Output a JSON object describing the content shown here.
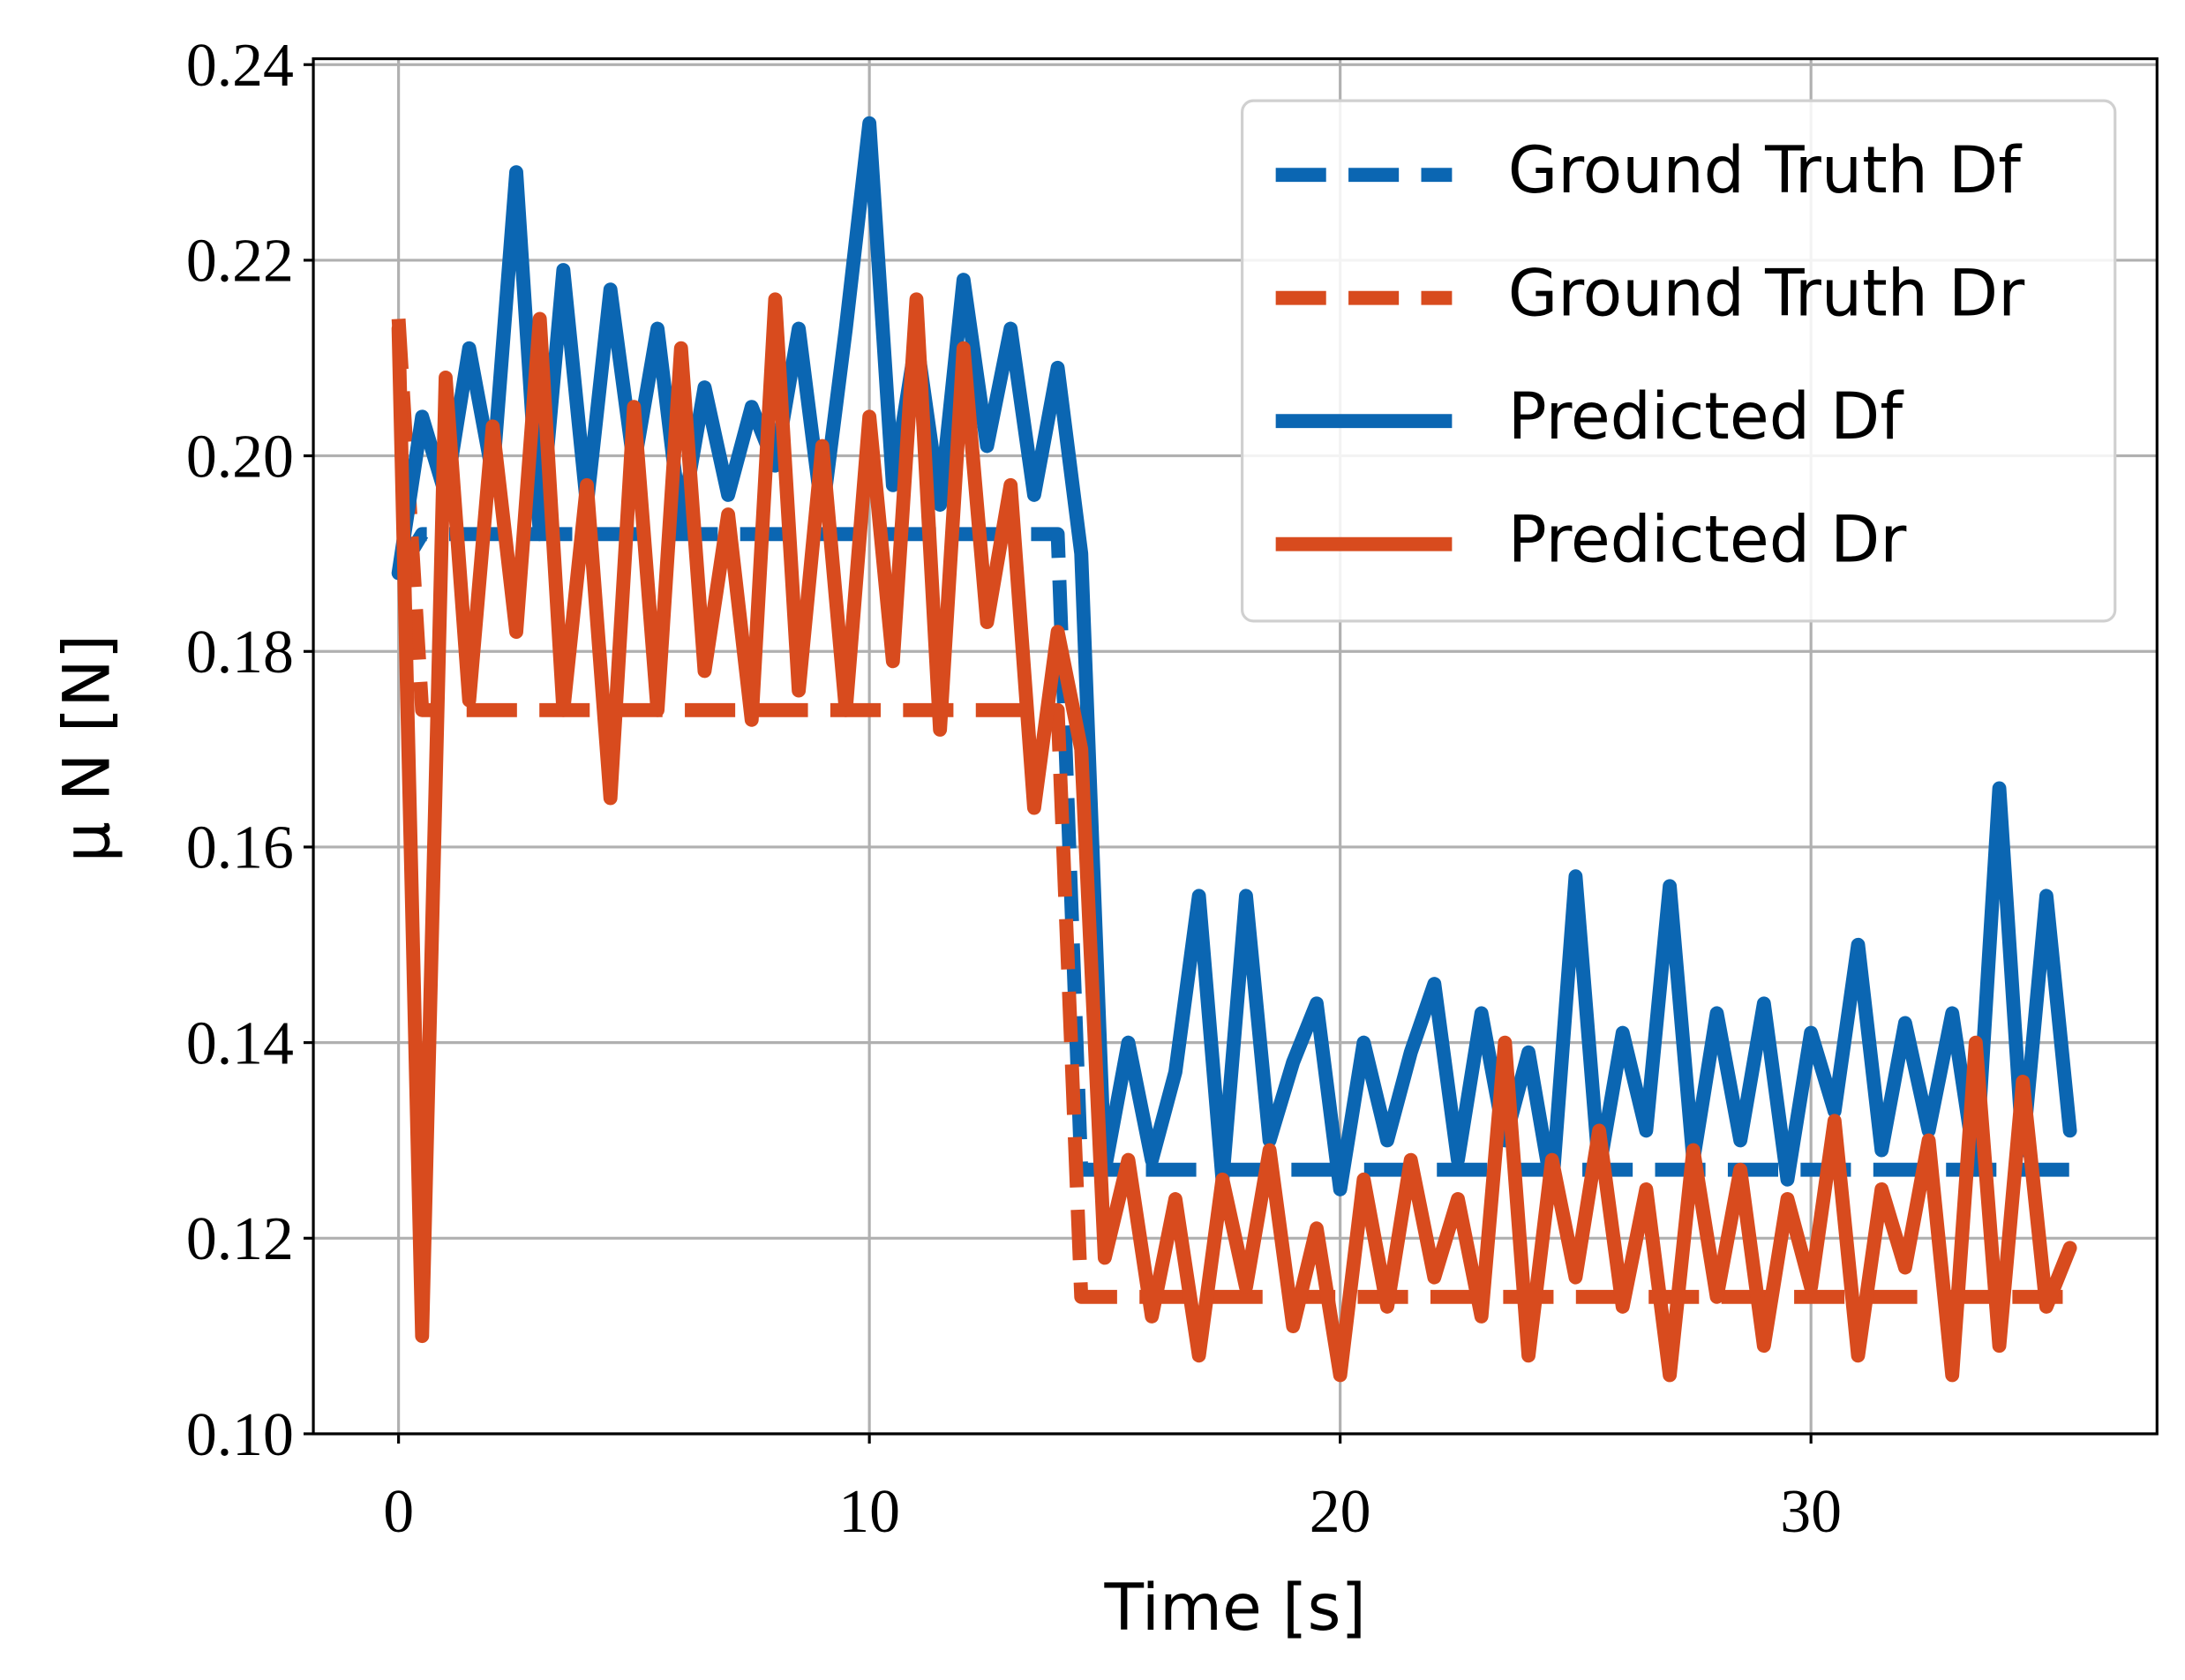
{
  "chart_data": {
    "type": "line",
    "xlabel": "Time [s]",
    "ylabel": "μ N [N]",
    "xlim": [
      -1.81,
      37.35
    ],
    "ylim": [
      0.1,
      0.2406
    ],
    "xticks": [
      0,
      10,
      20,
      30
    ],
    "yticks": [
      {
        "value": 0.1,
        "label": "0.10"
      },
      0.12,
      0.14,
      0.16,
      0.18,
      {
        "value": 0.2,
        "label": "0.20"
      },
      0.22,
      0.24
    ],
    "grid": true,
    "legend": "upper right",
    "x": [
      0,
      0.5,
      1,
      1.5,
      2,
      2.5,
      3,
      3.5,
      4,
      4.5,
      5,
      5.5,
      6,
      6.5,
      7,
      7.5,
      8,
      8.5,
      9,
      9.5,
      10,
      10.5,
      11,
      11.5,
      12,
      12.5,
      13,
      13.5,
      14,
      14.5,
      15,
      15.5,
      16,
      16.5,
      17,
      17.5,
      18,
      18.5,
      19,
      19.5,
      20,
      20.5,
      21,
      21.5,
      22,
      22.5,
      23,
      23.5,
      24,
      24.5,
      25,
      25.5,
      26,
      26.5,
      27,
      27.5,
      28,
      28.5,
      29,
      29.5,
      30,
      30.5,
      31,
      31.5,
      32,
      32.5,
      33,
      33.5,
      34,
      34.5,
      35,
      35.5
    ],
    "series": [
      {
        "name": "Ground Truth Df",
        "color": "#0b66b2",
        "dashed": true,
        "values": [
          0.188,
          0.192,
          0.192,
          0.192,
          0.192,
          0.192,
          0.192,
          0.192,
          0.192,
          0.192,
          0.192,
          0.192,
          0.192,
          0.192,
          0.192,
          0.192,
          0.192,
          0.192,
          0.192,
          0.192,
          0.192,
          0.192,
          0.192,
          0.192,
          0.192,
          0.192,
          0.192,
          0.192,
          0.192,
          0.127,
          0.127,
          0.127,
          0.127,
          0.127,
          0.127,
          0.127,
          0.127,
          0.127,
          0.127,
          0.127,
          0.127,
          0.127,
          0.127,
          0.127,
          0.127,
          0.127,
          0.127,
          0.127,
          0.127,
          0.127,
          0.127,
          0.127,
          0.127,
          0.127,
          0.127,
          0.127,
          0.127,
          0.127,
          0.127,
          0.127,
          0.127,
          0.127,
          0.127,
          0.127,
          0.127,
          0.127,
          0.127,
          0.127,
          0.127,
          0.127,
          0.127,
          0.127
        ]
      },
      {
        "name": "Ground Truth Dr",
        "color": "#d84b1e",
        "dashed": true,
        "values": [
          0.214,
          0.174,
          0.174,
          0.174,
          0.174,
          0.174,
          0.174,
          0.174,
          0.174,
          0.174,
          0.174,
          0.174,
          0.174,
          0.174,
          0.174,
          0.174,
          0.174,
          0.174,
          0.174,
          0.174,
          0.174,
          0.174,
          0.174,
          0.174,
          0.174,
          0.174,
          0.174,
          0.174,
          0.174,
          0.114,
          0.114,
          0.114,
          0.114,
          0.114,
          0.114,
          0.114,
          0.114,
          0.114,
          0.114,
          0.114,
          0.114,
          0.114,
          0.114,
          0.114,
          0.114,
          0.114,
          0.114,
          0.114,
          0.114,
          0.114,
          0.114,
          0.114,
          0.114,
          0.114,
          0.114,
          0.114,
          0.114,
          0.114,
          0.114,
          0.114,
          0.114,
          0.114,
          0.114,
          0.114,
          0.114,
          0.114,
          0.114,
          0.114,
          0.114,
          0.114,
          0.114,
          0.114
        ]
      },
      {
        "name": "Predicted Df",
        "color": "#0b66b2",
        "dashed": false,
        "values": [
          0.188,
          0.204,
          0.196,
          0.211,
          0.198,
          0.229,
          0.192,
          0.219,
          0.195,
          0.217,
          0.199,
          0.213,
          0.193,
          0.207,
          0.196,
          0.205,
          0.199,
          0.213,
          0.194,
          0.213,
          0.234,
          0.197,
          0.212,
          0.195,
          0.218,
          0.201,
          0.213,
          0.196,
          0.209,
          0.19,
          0.127,
          0.14,
          0.128,
          0.137,
          0.155,
          0.126,
          0.155,
          0.13,
          0.138,
          0.144,
          0.125,
          0.14,
          0.13,
          0.139,
          0.146,
          0.128,
          0.143,
          0.13,
          0.139,
          0.125,
          0.157,
          0.127,
          0.141,
          0.131,
          0.156,
          0.128,
          0.143,
          0.13,
          0.144,
          0.126,
          0.141,
          0.133,
          0.15,
          0.129,
          0.142,
          0.131,
          0.143,
          0.127,
          0.166,
          0.129,
          0.155,
          0.131
        ]
      },
      {
        "name": "Predicted Dr",
        "color": "#d84b1e",
        "dashed": false,
        "values": [
          0.213,
          0.11,
          0.208,
          0.175,
          0.203,
          0.182,
          0.214,
          0.174,
          0.197,
          0.165,
          0.205,
          0.174,
          0.211,
          0.178,
          0.194,
          0.173,
          0.216,
          0.176,
          0.201,
          0.174,
          0.204,
          0.179,
          0.216,
          0.172,
          0.211,
          0.183,
          0.197,
          0.164,
          0.182,
          0.17,
          0.118,
          0.128,
          0.112,
          0.124,
          0.108,
          0.126,
          0.115,
          0.129,
          0.111,
          0.121,
          0.106,
          0.126,
          0.113,
          0.128,
          0.116,
          0.124,
          0.112,
          0.14,
          0.108,
          0.128,
          0.116,
          0.131,
          0.113,
          0.125,
          0.106,
          0.129,
          0.114,
          0.127,
          0.109,
          0.124,
          0.115,
          0.132,
          0.108,
          0.125,
          0.117,
          0.13,
          0.106,
          0.14,
          0.109,
          0.136,
          0.113,
          0.119
        ]
      }
    ]
  }
}
